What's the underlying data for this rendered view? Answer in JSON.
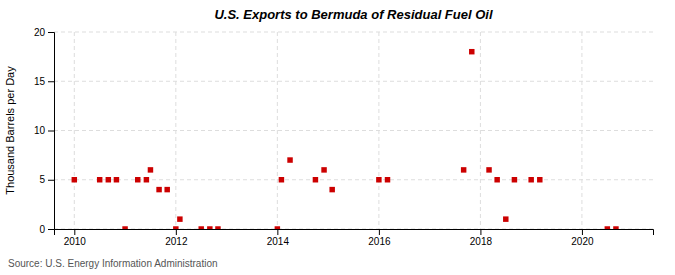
{
  "chart_data": {
    "type": "scatter",
    "title": "U.S. Exports to Bermuda of Residual Fuel Oil",
    "ylabel": "Thousand Barrels per Day",
    "annotations": [
      "Source: U.S. Energy Information Administration"
    ],
    "color": "#cc0000",
    "marker": "square",
    "grid": true,
    "xlim": [
      2009.6,
      2021.4
    ],
    "xticks": [
      2010,
      2012,
      2014,
      2016,
      2018,
      2020
    ],
    "ylim": [
      0,
      20
    ],
    "yticks": [
      0,
      5,
      10,
      15,
      20
    ],
    "x": [
      2010.0,
      2010.5,
      2010.67,
      2010.83,
      2011.0,
      2011.25,
      2011.42,
      2011.5,
      2011.67,
      2011.83,
      2012.0,
      2012.08,
      2012.5,
      2012.67,
      2012.83,
      2014.0,
      2014.08,
      2014.25,
      2014.75,
      2014.92,
      2015.08,
      2016.0,
      2016.17,
      2017.67,
      2017.83,
      2018.17,
      2018.33,
      2018.5,
      2018.67,
      2019.0,
      2019.17,
      2020.5,
      2020.67
    ],
    "values": [
      5,
      5,
      5,
      5,
      0,
      5,
      5,
      6,
      4,
      4,
      0,
      1,
      0,
      0,
      0,
      0,
      5,
      7,
      5,
      6,
      4,
      5,
      5,
      6,
      18,
      6,
      5,
      1,
      5,
      5,
      5,
      0,
      0
    ]
  }
}
